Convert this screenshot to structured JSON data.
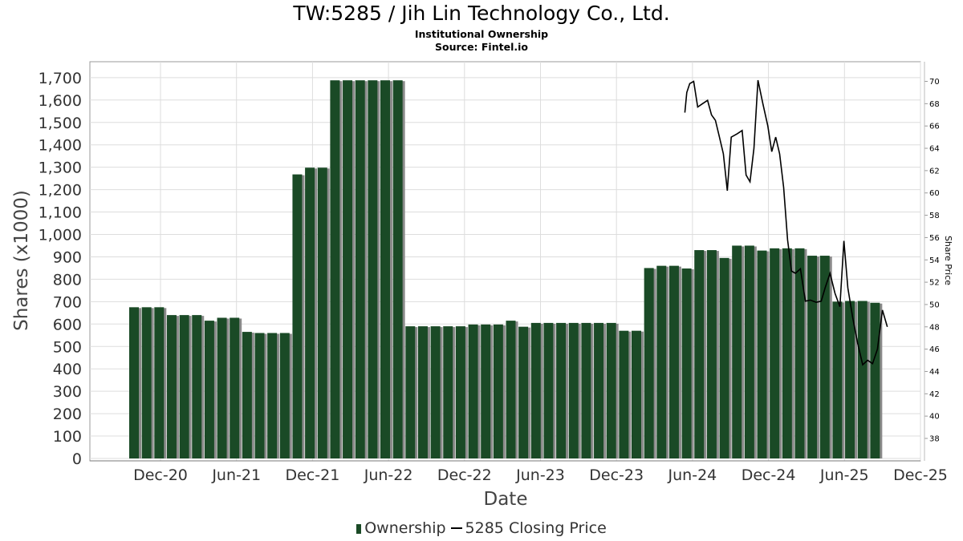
{
  "title": "TW:5285 / Jih Lin Technology Co., Ltd.",
  "subtitle": "Institutional Ownership",
  "source": "Source: Fintel.io",
  "legend": {
    "ownership": "Ownership",
    "price": "5285 Closing Price"
  },
  "colors": {
    "bar": "#1a4a26",
    "bar_shadow": "#8a8a8a",
    "price_line": "#000000",
    "grid": "#dddddd"
  },
  "chart_data": {
    "type": "bar",
    "xlabel": "Date",
    "ylabel": "Shares (x1000)",
    "y2label": "Share Price",
    "ylim": [
      0,
      1750
    ],
    "y2lim": [
      36.2,
      71.1
    ],
    "y_ticks": [
      "0",
      "100",
      "200",
      "300",
      "400",
      "500",
      "600",
      "700",
      "800",
      "900",
      "1,000",
      "1,100",
      "1,200",
      "1,300",
      "1,400",
      "1,500",
      "1,600",
      "1,700"
    ],
    "y2_ticks": [
      "38",
      "40",
      "42",
      "44",
      "46",
      "48",
      "50",
      "52",
      "54",
      "56",
      "58",
      "60",
      "62",
      "64",
      "66",
      "68",
      "70"
    ],
    "x_ticks": [
      "Dec-20",
      "Jun-21",
      "Dec-21",
      "Jun-22",
      "Dec-22",
      "Jun-23",
      "Dec-23",
      "Jun-24",
      "Dec-24",
      "Jun-25",
      "Dec-25"
    ],
    "grid": true,
    "legend_position": "bottom",
    "series": [
      {
        "name": "Ownership",
        "kind": "bar",
        "values": [
          675,
          675,
          675,
          640,
          640,
          640,
          615,
          628,
          628,
          565,
          560,
          560,
          560,
          1268,
          1298,
          1298,
          1688,
          1688,
          1688,
          1688,
          1688,
          1688,
          590,
          590,
          590,
          590,
          590,
          598,
          598,
          598,
          615,
          588,
          605,
          605,
          605,
          605,
          605,
          605,
          605,
          570,
          570,
          850,
          860,
          860,
          848,
          930,
          930,
          895,
          950,
          950,
          928,
          938,
          938,
          938,
          905,
          905,
          700,
          703,
          703,
          695
        ]
      },
      {
        "name": "5285 Closing Price",
        "kind": "line",
        "points": [
          [
            0.1,
            67.2
          ],
          [
            0.2,
            69.0
          ],
          [
            0.35,
            69.8
          ],
          [
            0.55,
            70.0
          ],
          [
            0.75,
            67.7
          ],
          [
            1.0,
            68.0
          ],
          [
            1.25,
            68.3
          ],
          [
            1.45,
            67.0
          ],
          [
            1.65,
            66.5
          ],
          [
            1.85,
            65.0
          ],
          [
            2.05,
            63.5
          ],
          [
            2.25,
            60.2
          ],
          [
            2.45,
            65.0
          ],
          [
            2.75,
            65.3
          ],
          [
            3.0,
            65.6
          ],
          [
            3.2,
            61.6
          ],
          [
            3.4,
            61.0
          ],
          [
            3.6,
            64.0
          ],
          [
            3.8,
            70.1
          ],
          [
            4.05,
            68.0
          ],
          [
            4.3,
            66.0
          ],
          [
            4.5,
            63.7
          ],
          [
            4.7,
            65.0
          ],
          [
            4.9,
            63.5
          ],
          [
            5.1,
            60.5
          ],
          [
            5.3,
            55.8
          ],
          [
            5.5,
            53.0
          ],
          [
            5.7,
            52.8
          ],
          [
            5.95,
            53.2
          ],
          [
            6.2,
            50.3
          ],
          [
            6.45,
            50.4
          ],
          [
            6.75,
            50.2
          ],
          [
            7.0,
            50.3
          ],
          [
            7.2,
            51.5
          ],
          [
            7.45,
            52.8
          ],
          [
            7.7,
            51.0
          ],
          [
            7.95,
            49.8
          ],
          [
            8.15,
            55.7
          ],
          [
            8.35,
            51.5
          ],
          [
            8.6,
            48.8
          ],
          [
            8.85,
            46.5
          ],
          [
            9.1,
            44.6
          ],
          [
            9.35,
            45.0
          ],
          [
            9.6,
            44.7
          ],
          [
            9.85,
            46.0
          ],
          [
            10.1,
            49.5
          ],
          [
            10.35,
            48.0
          ]
        ]
      }
    ]
  }
}
